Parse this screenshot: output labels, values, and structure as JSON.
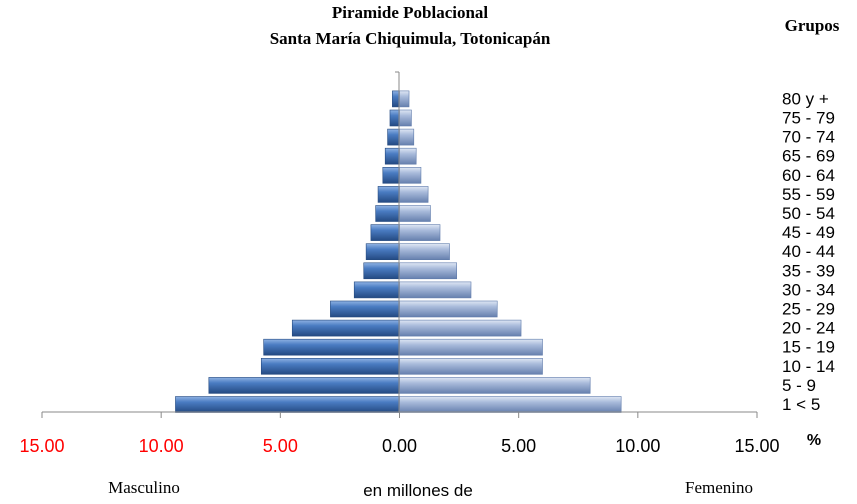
{
  "chart_data": {
    "type": "bar",
    "title": "Piramide Poblacional",
    "subtitle": "Santa María Chiquimula, Totonicapán",
    "groups_label": "Grupos",
    "x_unit": "%",
    "xlabel": "en millones de",
    "left_label": "Masculino",
    "right_label": "Femenino",
    "xlim": [
      -15,
      15
    ],
    "x_ticks": [
      {
        "value": -15,
        "label": "15.00"
      },
      {
        "value": -10,
        "label": "10.00"
      },
      {
        "value": -5,
        "label": "5.00"
      },
      {
        "value": 0,
        "label": "0.00"
      },
      {
        "value": 5,
        "label": "5.00"
      },
      {
        "value": 10,
        "label": "10.00"
      },
      {
        "value": 15,
        "label": "15.00"
      }
    ],
    "categories": [
      "1 < 5",
      "5 - 9",
      "10 - 14",
      "15 - 19",
      "20 - 24",
      "25 - 29",
      "30 - 34",
      "35 - 39",
      "40 - 44",
      "45 - 49",
      "50 - 54",
      "55 - 59",
      "60 - 64",
      "65 - 69",
      "70 - 74",
      "75 - 79",
      "80 y +"
    ],
    "series": [
      {
        "values": [
          9.4,
          8.0,
          5.8,
          5.7,
          4.5,
          2.9,
          1.9,
          1.5,
          1.4,
          1.2,
          1.0,
          0.9,
          0.7,
          0.6,
          0.5,
          0.4,
          0.3
        ]
      },
      {
        "values": [
          9.3,
          8.0,
          6.0,
          6.0,
          5.1,
          4.1,
          3.0,
          2.4,
          2.1,
          1.7,
          1.3,
          1.2,
          0.9,
          0.7,
          0.6,
          0.5,
          0.4
        ]
      }
    ],
    "colors": {
      "male": "#3a6fb5",
      "male_light": "#6f9ad6",
      "male_dark": "#24497f",
      "female": "#9aaed3",
      "female_light": "#cbd7ec",
      "female_dark": "#5f7bab",
      "neg_tick_label": "#ff0000",
      "pos_tick_label": "#000000"
    },
    "grid": false
  }
}
